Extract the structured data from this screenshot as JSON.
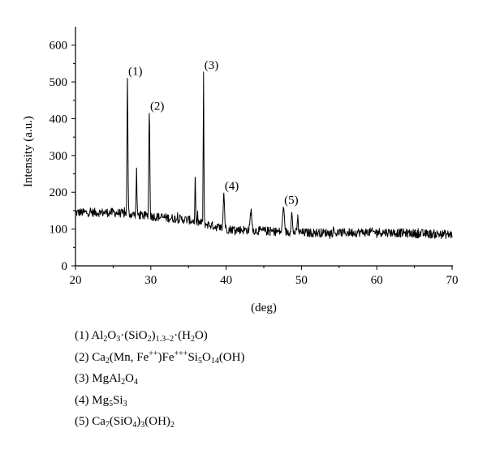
{
  "chart_data": {
    "type": "line",
    "title": "",
    "xlabel": "(deg)",
    "ylabel": "Intensity (a.u.)",
    "xlim": [
      20,
      70
    ],
    "ylim": [
      0,
      650
    ],
    "x_ticks": [
      20,
      30,
      40,
      50,
      60,
      70
    ],
    "y_ticks": [
      0,
      100,
      200,
      300,
      400,
      500,
      600
    ],
    "line_color": "#000000",
    "grid": false,
    "legend": false,
    "series": [
      {
        "baseline": [
          [
            20,
            145
          ],
          [
            25,
            145
          ],
          [
            30,
            135
          ],
          [
            35,
            125
          ],
          [
            40,
            100
          ],
          [
            45,
            95
          ],
          [
            50,
            90
          ],
          [
            55,
            90
          ],
          [
            60,
            92
          ],
          [
            65,
            88
          ],
          [
            70,
            85
          ]
        ],
        "peaks": [
          {
            "x": 26.9,
            "y": 510,
            "w": 0.08
          },
          {
            "x": 28.1,
            "y": 265,
            "w": 0.07
          },
          {
            "x": 29.8,
            "y": 415,
            "w": 0.09
          },
          {
            "x": 35.9,
            "y": 240,
            "w": 0.06
          },
          {
            "x": 37.0,
            "y": 527,
            "w": 0.06
          },
          {
            "x": 39.7,
            "y": 198,
            "w": 0.12
          },
          {
            "x": 43.3,
            "y": 150,
            "w": 0.15
          },
          {
            "x": 47.6,
            "y": 160,
            "w": 0.14
          },
          {
            "x": 48.7,
            "y": 145,
            "w": 0.12
          },
          {
            "x": 49.5,
            "y": 130,
            "w": 0.1
          }
        ],
        "noise": 12
      }
    ],
    "annotations": [
      {
        "text": "(1)",
        "x": 26.9,
        "y": 510
      },
      {
        "text": "(2)",
        "x": 29.8,
        "y": 415
      },
      {
        "text": "(3)",
        "x": 37.0,
        "y": 527
      },
      {
        "text": "(4)",
        "x": 39.7,
        "y": 198
      },
      {
        "text": "(5)",
        "x": 47.6,
        "y": 160
      }
    ]
  },
  "legend_items": [
    [
      {
        "t": "(1) Al"
      },
      {
        "sub": "2"
      },
      {
        "t": "O"
      },
      {
        "sub": "3"
      },
      {
        "t": "·(SiO"
      },
      {
        "sub": "2"
      },
      {
        "t": ")"
      },
      {
        "sub": "1.3–2"
      },
      {
        "t": "·(H"
      },
      {
        "sub": "2"
      },
      {
        "t": "O)"
      }
    ],
    [
      {
        "t": "(2) Ca"
      },
      {
        "sub": "2"
      },
      {
        "t": "(Mn, Fe"
      },
      {
        "sup": "++"
      },
      {
        "t": ")Fe"
      },
      {
        "sup": "+++"
      },
      {
        "t": "Si"
      },
      {
        "sub": "5"
      },
      {
        "t": "O"
      },
      {
        "sub": "14"
      },
      {
        "t": "(OH)"
      }
    ],
    [
      {
        "t": "(3) MgAl"
      },
      {
        "sub": "2"
      },
      {
        "t": "O"
      },
      {
        "sub": "4"
      }
    ],
    [
      {
        "t": "(4) Mg"
      },
      {
        "sub": "5"
      },
      {
        "t": "Si"
      },
      {
        "sub": "3"
      }
    ],
    [
      {
        "t": "(5) Ca"
      },
      {
        "sub": "7"
      },
      {
        "t": "(SiO"
      },
      {
        "sub": "4"
      },
      {
        "t": ")"
      },
      {
        "sub": "3"
      },
      {
        "t": "(OH)"
      },
      {
        "sub": "2"
      }
    ]
  ]
}
